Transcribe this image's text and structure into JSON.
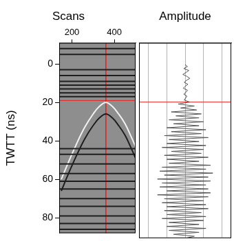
{
  "chart_data": [
    {
      "type": "radargram",
      "title": "Scans",
      "y_label": "TWTT (ns)",
      "xlim": [
        140,
        500
      ],
      "xticks": [
        200,
        400
      ],
      "ylim": [
        -11,
        88
      ],
      "yticks": [
        0,
        20,
        40,
        60,
        80
      ],
      "reflectors": {
        "y": [
          -8,
          -5,
          3,
          6,
          9,
          11,
          13,
          15,
          17,
          44,
          47,
          52,
          57,
          61,
          65,
          70,
          74,
          79,
          83,
          86
        ],
        "color": "#1e1e1e"
      },
      "hyperbolas": [
        {
          "x": [
            150,
            180,
            220,
            260,
            300,
            330,
            360,
            390,
            420,
            450,
            480,
            500
          ],
          "y": [
            60,
            52,
            42,
            33,
            26,
            22,
            20,
            22,
            26,
            31,
            38,
            43
          ],
          "color": "#f2f2f2"
        },
        {
          "x": [
            150,
            180,
            220,
            260,
            300,
            330,
            360,
            390,
            420,
            450,
            480,
            500
          ],
          "y": [
            66,
            58,
            48,
            39,
            32,
            28,
            26,
            28,
            32,
            37,
            44,
            49
          ],
          "color": "#1e1e1e"
        }
      ],
      "crosshair": {
        "x": 360,
        "y": 19,
        "color": "#e8261f"
      }
    },
    {
      "type": "line",
      "title": "Amplitude",
      "xlim": [
        -1,
        1
      ],
      "xticks": [
        -0.8,
        -0.4,
        0,
        0.4,
        0.8
      ],
      "ylim": [
        -11,
        88
      ],
      "grid": true,
      "tick_labels": false,
      "series": [
        {
          "color": "#555555",
          "y": [
            0,
            1,
            2,
            3,
            4,
            5,
            6,
            7,
            8,
            9,
            10,
            11,
            12,
            13,
            14,
            15,
            16,
            17,
            18,
            19,
            20,
            21,
            22,
            23,
            24,
            25,
            26,
            27,
            28,
            29,
            30,
            31,
            32,
            33,
            34,
            35,
            36,
            37,
            38,
            39,
            40,
            41,
            42,
            43,
            44,
            45,
            46,
            47,
            48,
            49,
            50,
            51,
            52,
            53,
            54,
            55,
            56,
            57,
            58,
            59,
            60,
            61,
            62,
            63,
            64,
            65,
            66,
            67,
            68,
            69,
            70,
            71,
            72,
            73,
            74,
            75,
            76,
            77,
            78,
            79,
            80,
            81,
            82,
            83,
            84,
            85,
            86,
            87,
            88
          ],
          "x": [
            0,
            0.05,
            -0.03,
            0.08,
            0.02,
            -0.05,
            0.04,
            0.1,
            0.03,
            -0.02,
            0.06,
            0.0,
            -0.04,
            0.05,
            0.02,
            -0.03,
            0.04,
            0.01,
            -0.02,
            0.1,
            -0.15,
            0.2,
            -0.1,
            0.25,
            -0.3,
            0.35,
            -0.2,
            0.3,
            -0.35,
            0.4,
            -0.25,
            0.3,
            -0.4,
            0.45,
            -0.3,
            0.35,
            -0.45,
            0.5,
            -0.35,
            0.3,
            -0.4,
            0.45,
            -0.5,
            0.4,
            -0.3,
            0.35,
            -0.45,
            0.5,
            -0.4,
            0.3,
            -0.35,
            0.55,
            -0.5,
            0.45,
            -0.55,
            0.6,
            -0.45,
            0.5,
            -0.6,
            0.55,
            -0.5,
            0.45,
            -0.55,
            0.5,
            -0.4,
            0.55,
            -0.6,
            0.5,
            -0.45,
            0.4,
            -0.5,
            0.45,
            -0.4,
            0.5,
            -0.45,
            0.35,
            -0.4,
            0.45,
            -0.5,
            0.4,
            -0.35,
            0.3,
            -0.4,
            0.45,
            -0.35,
            0.3,
            -0.25,
            0.2,
            0.0
          ]
        }
      ],
      "crosshair": {
        "y": 19,
        "color": "#e8261f"
      }
    }
  ]
}
